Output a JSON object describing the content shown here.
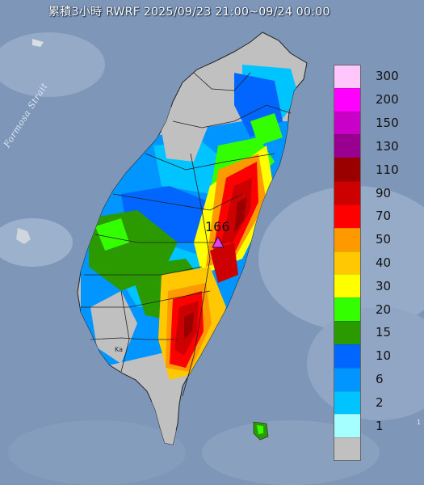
{
  "title": "累積3小時 RWRF 2025/09/23 21:00~09/24 00:00",
  "strait_label": "Formosa Strait",
  "peak": {
    "label": "166",
    "marker": "triangle-marker-icon",
    "color": "#e43df2"
  },
  "places": {
    "kaohsiung_fragment": "Ka",
    "edge_fragment": "1"
  },
  "legend": [
    {
      "label": "300",
      "color": "#ffc6fb"
    },
    {
      "label": "200",
      "color": "#ff00ff"
    },
    {
      "label": "150",
      "color": "#c800c8"
    },
    {
      "label": "130",
      "color": "#9a0090"
    },
    {
      "label": "110",
      "color": "#9b0000"
    },
    {
      "label": "90",
      "color": "#cc0000"
    },
    {
      "label": "70",
      "color": "#ff0000"
    },
    {
      "label": "50",
      "color": "#ff9900"
    },
    {
      "label": "40",
      "color": "#ffc800"
    },
    {
      "label": "30",
      "color": "#ffff00"
    },
    {
      "label": "20",
      "color": "#33ff00"
    },
    {
      "label": "15",
      "color": "#2a9a00"
    },
    {
      "label": "10",
      "color": "#0066ff"
    },
    {
      "label": "6",
      "color": "#0095ff"
    },
    {
      "label": "2",
      "color": "#00c4ff"
    },
    {
      "label": "1",
      "color": "#a6ffff"
    },
    {
      "label": "",
      "color": "#c0c0c0"
    }
  ]
}
